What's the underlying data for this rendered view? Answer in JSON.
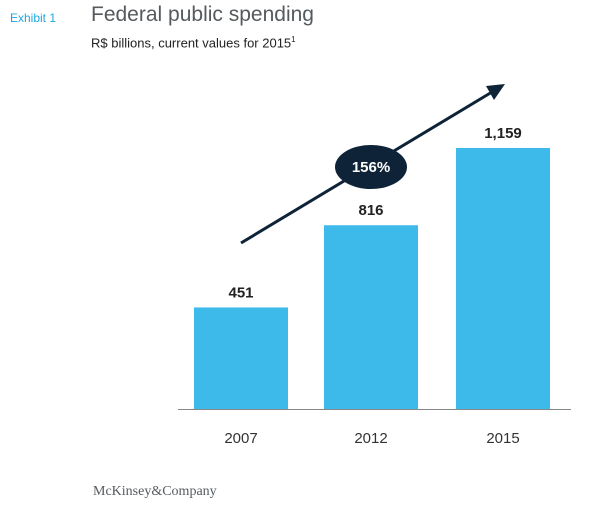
{
  "header": {
    "exhibit_label": "Exhibit 1",
    "title": "Federal public spending",
    "subtitle": "R$ billions, current values for 2015",
    "subtitle_footnote_marker": "1"
  },
  "chart_data": {
    "type": "bar",
    "categories": [
      "2007",
      "2012",
      "2015"
    ],
    "values": [
      451,
      816,
      1159
    ],
    "value_labels": [
      "451",
      "816",
      "1,159"
    ],
    "growth_annotation": "156%",
    "bar_color": "#3db9ea",
    "ylim": [
      0,
      1159
    ],
    "grid": false
  },
  "footer": {
    "brand": "McKinsey&Company"
  }
}
